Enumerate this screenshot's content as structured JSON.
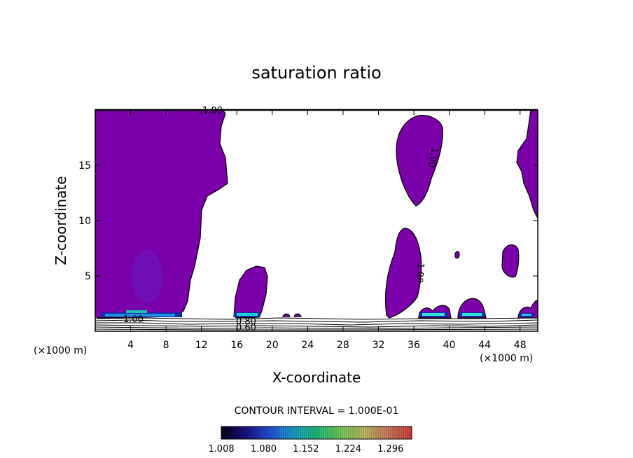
{
  "chart_data": {
    "type": "contour",
    "title": "saturation ratio",
    "xlabel": "X-coordinate",
    "ylabel": "Z-coordinate",
    "x_unit": "(×1000 m)",
    "xlim": [
      0,
      50
    ],
    "ylim": [
      0,
      20
    ],
    "x_ticks": [
      4,
      8,
      12,
      16,
      20,
      24,
      28,
      32,
      36,
      40,
      44,
      48
    ],
    "y_ticks": [
      5,
      10,
      15
    ],
    "contour_interval_text": "CONTOUR INTERVAL = 1.000E-01",
    "contour_labels": [
      "1.00",
      "1.00",
      "1.00",
      "1.00",
      "0.80",
      "0.60"
    ],
    "colorbar": {
      "ticks": [
        "1.008",
        "1.080",
        "1.152",
        "1.224",
        "1.296"
      ],
      "min": 1.008,
      "max": 1.332
    },
    "colors": {
      "fill": "#7a00aa",
      "line": "#000000"
    },
    "supersaturated_regions": [
      {
        "x": [
          0,
          14.5
        ],
        "z": [
          1.3,
          20
        ],
        "value": 1.0
      },
      {
        "x": [
          15.8,
          19.2
        ],
        "z": [
          1.3,
          5.8
        ],
        "value": 1.0
      },
      {
        "x": [
          34.3,
          37.5
        ],
        "z": [
          11.3,
          19.0
        ],
        "value": 1.0
      },
      {
        "x": [
          32.7,
          36.8
        ],
        "z": [
          1.3,
          9.0
        ],
        "value": 1.0
      },
      {
        "x": [
          47.5,
          50
        ],
        "z": [
          10.0,
          20
        ],
        "value": 1.0
      }
    ]
  }
}
